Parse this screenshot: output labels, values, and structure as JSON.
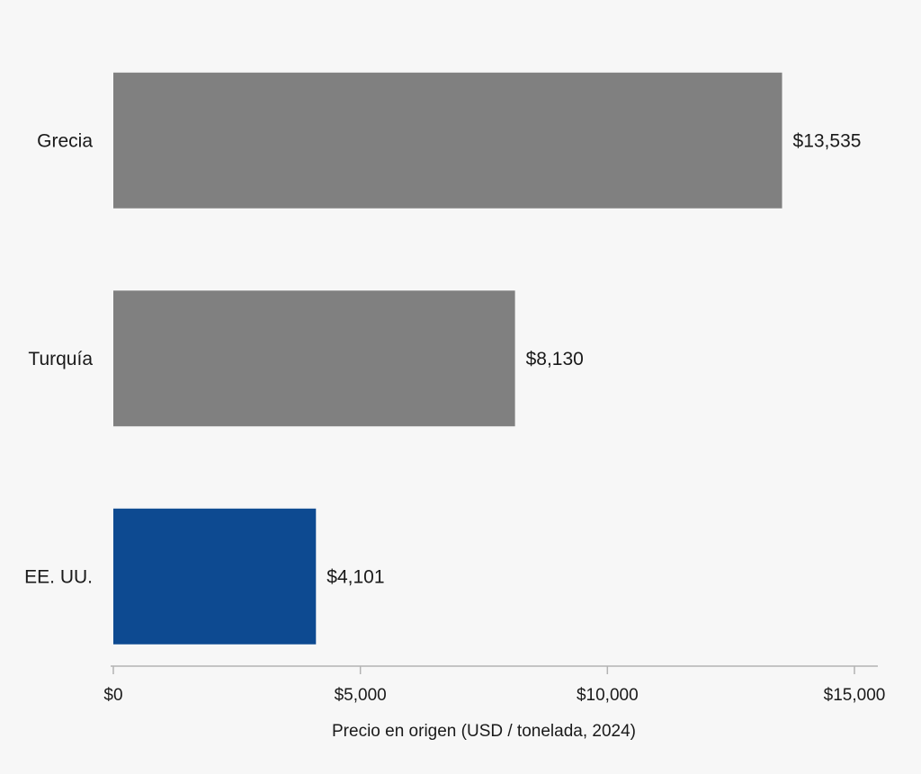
{
  "chart_data": {
    "type": "bar",
    "orientation": "horizontal",
    "categories": [
      "Grecia",
      "Turquía",
      "EE. UU."
    ],
    "values": [
      13535,
      8130,
      4101
    ],
    "value_labels": [
      "$13,535",
      "$8,130",
      "$4,101"
    ],
    "xlabel": "Precio en origen (USD / tonelada, 2024)",
    "ylabel": "",
    "xlim": [
      0,
      15000
    ],
    "xticks": [
      0,
      5000,
      10000,
      15000
    ],
    "xtick_labels": [
      "$0",
      "$5,000",
      "$10,000",
      "$15,000"
    ],
    "grid": false,
    "legend": false,
    "colors": {
      "default": "#808080",
      "highlight": "#0d4a91",
      "highlight_category": "EE. UU."
    }
  }
}
